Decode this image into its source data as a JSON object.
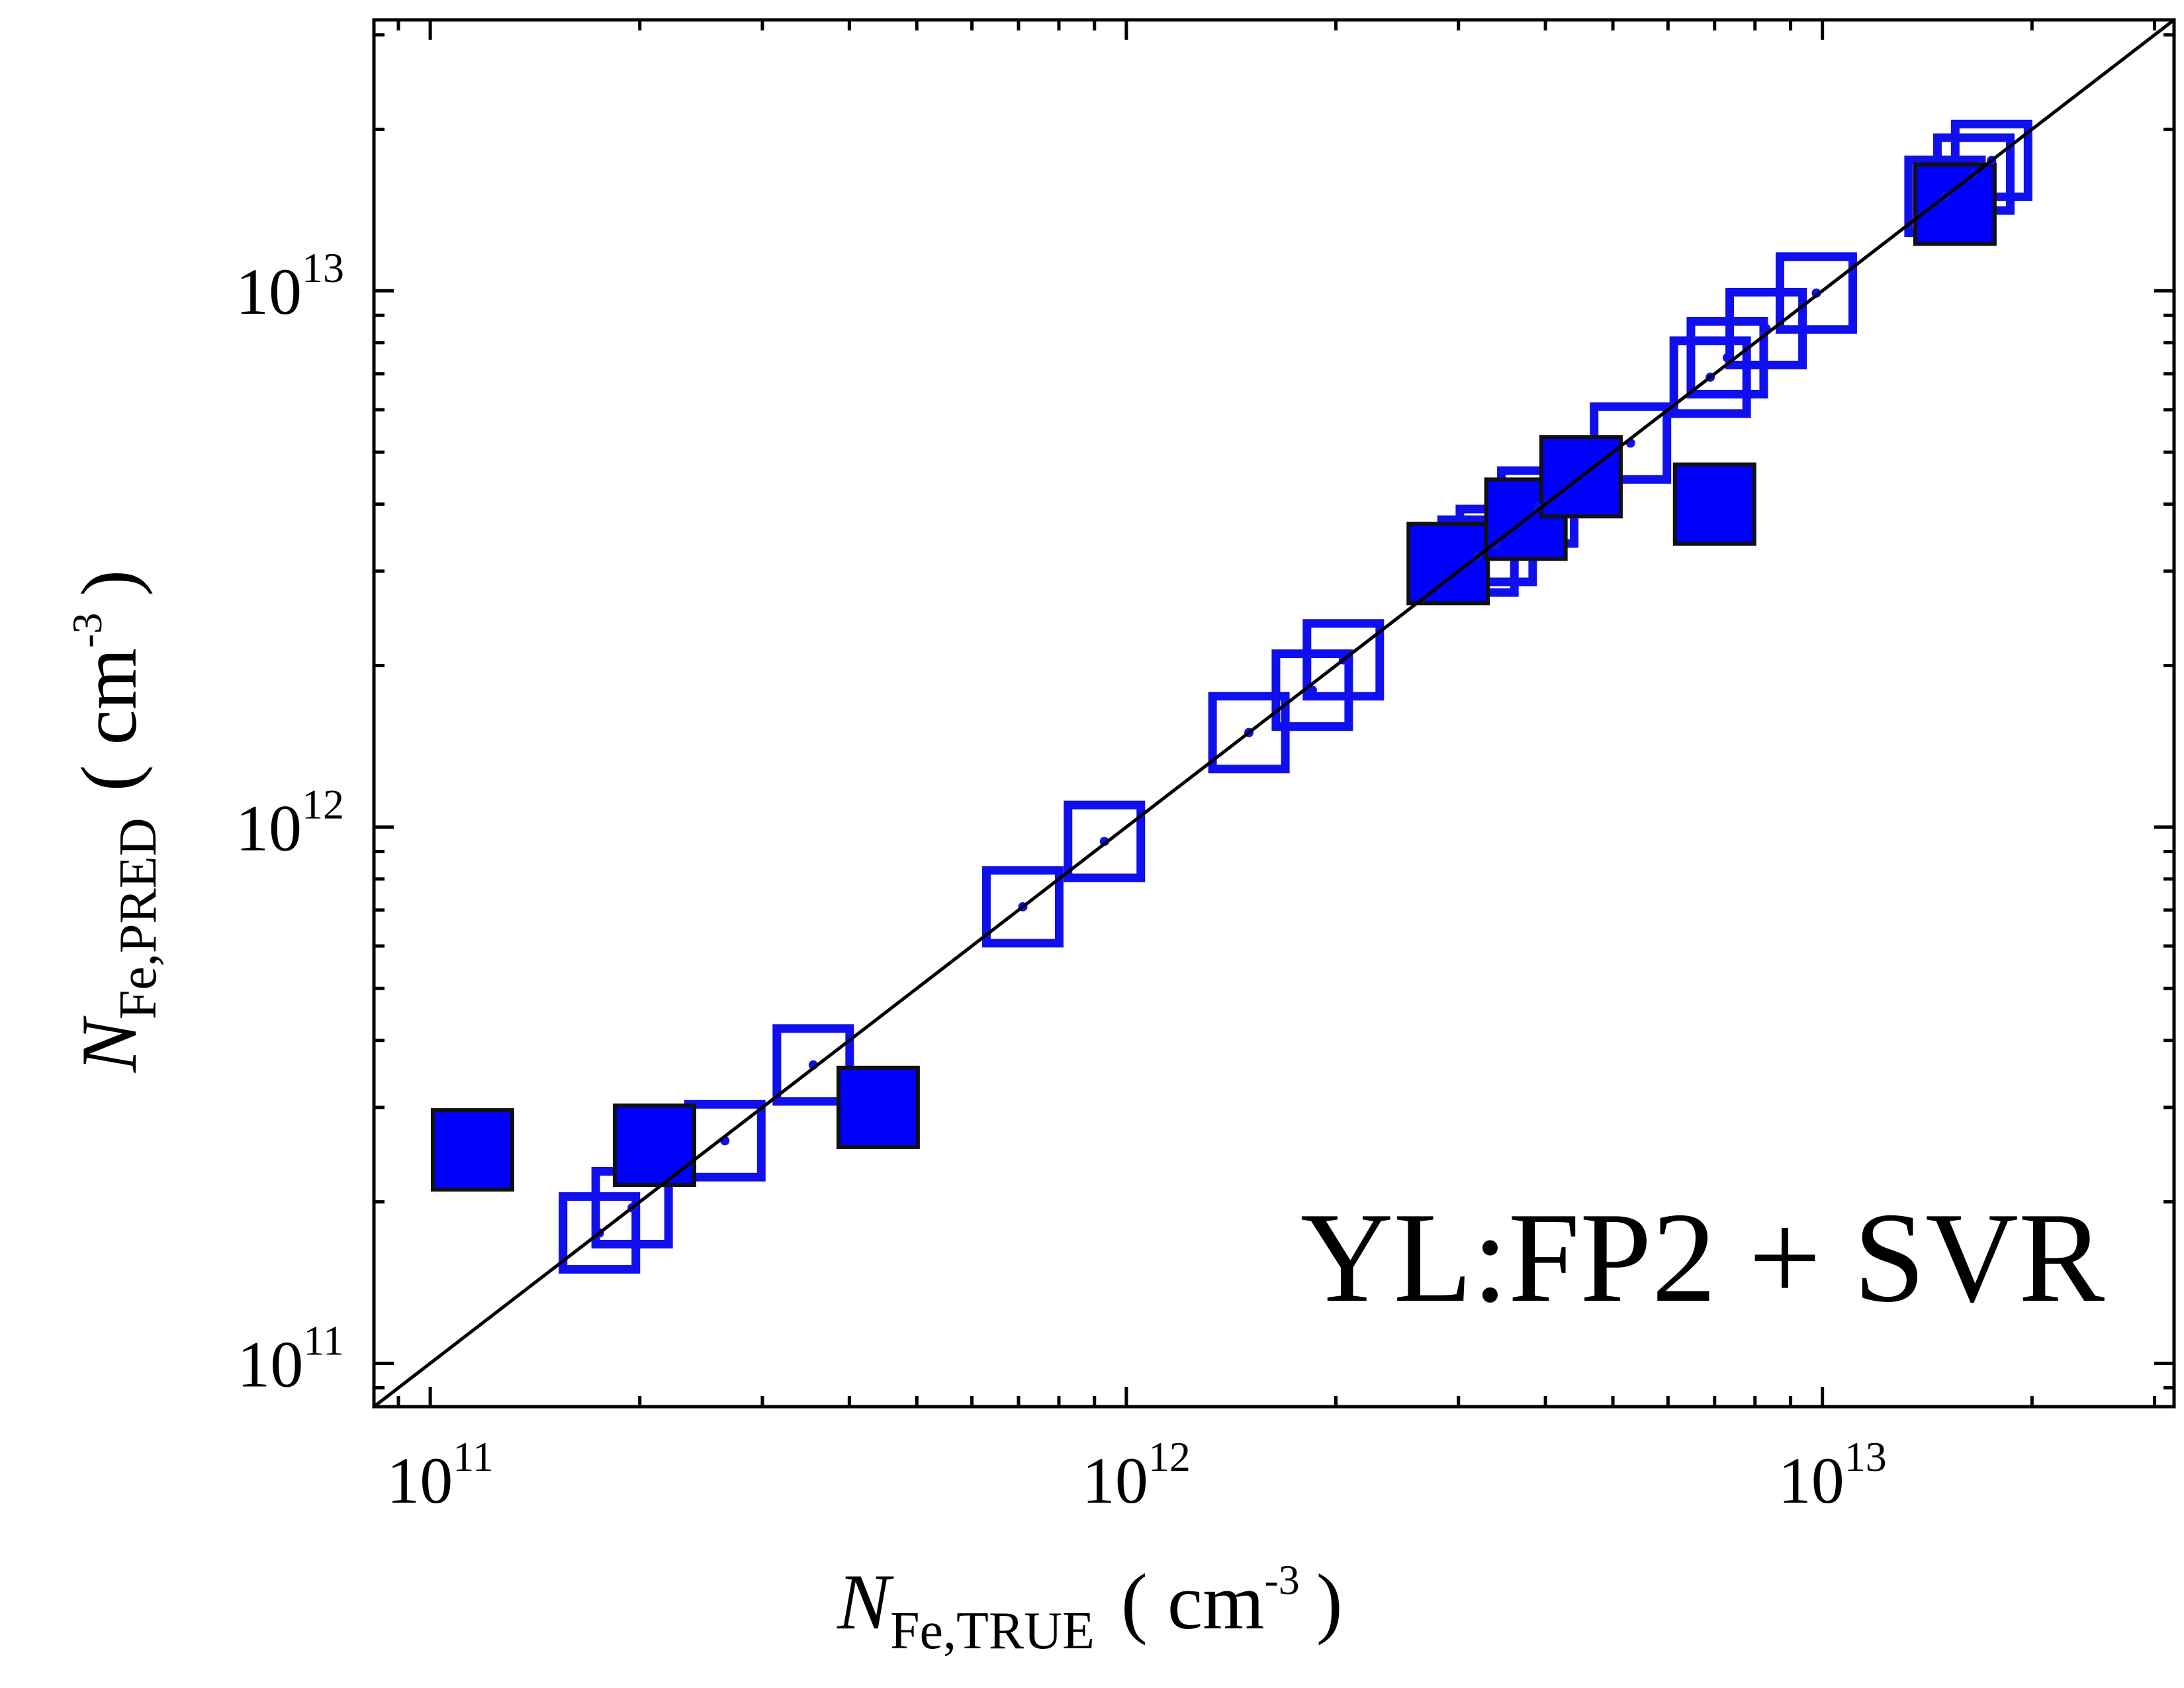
{
  "chart_data": {
    "type": "scatter",
    "title": "",
    "annotation": "YL:FP2 + SVR",
    "x_axis": {
      "scale": "log",
      "range": [
        83000000000.0,
        32000000000000.0
      ],
      "major_ticks": [
        {
          "value": 100000000000.0,
          "base": "10",
          "exp": "11"
        },
        {
          "value": 1000000000000.0,
          "base": "10",
          "exp": "12"
        },
        {
          "value": 10000000000000.0,
          "base": "10",
          "exp": "13"
        }
      ],
      "label": {
        "symbol": "N",
        "subscript": "Fe,TRUE",
        "unit": "( cm",
        "unit_exp": "-3",
        "unit_close": ")"
      }
    },
    "y_axis": {
      "scale": "log",
      "range": [
        83000000000.0,
        32000000000000.0
      ],
      "major_ticks": [
        {
          "value": 100000000000.0,
          "base": "10",
          "exp": "11"
        },
        {
          "value": 1000000000000.0,
          "base": "10",
          "exp": "12"
        },
        {
          "value": 10000000000000.0,
          "base": "10",
          "exp": "13"
        }
      ],
      "label": {
        "symbol": "N",
        "subscript": "Fe,PRED",
        "unit": "( cm",
        "unit_exp": "-3",
        "unit_close": ")"
      }
    },
    "grid": false,
    "reference_line": "y = x",
    "series": [
      {
        "marker": "open-square",
        "color": "#1010ee",
        "points": [
          {
            "x": 175000000000.0,
            "y": 175000000000.0
          },
          {
            "x": 195000000000.0,
            "y": 195000000000.0
          },
          {
            "x": 265000000000.0,
            "y": 260000000000.0
          },
          {
            "x": 355000000000.0,
            "y": 360000000000.0
          },
          {
            "x": 710000000000.0,
            "y": 710000000000.0
          },
          {
            "x": 930000000000.0,
            "y": 940000000000.0
          },
          {
            "x": 1500000000000.0,
            "y": 1500000000000.0
          },
          {
            "x": 1850000000000.0,
            "y": 1800000000000.0
          },
          {
            "x": 2050000000000.0,
            "y": 2050000000000.0
          },
          {
            "x": 3200000000000.0,
            "y": 3200000000000.0
          },
          {
            "x": 3400000000000.0,
            "y": 3350000000000.0
          },
          {
            "x": 3900000000000.0,
            "y": 3950000000000.0
          },
          {
            "x": 5300000000000.0,
            "y": 5200000000000.0
          },
          {
            "x": 6900000000000.0,
            "y": 6900000000000.0
          },
          {
            "x": 7300000000000.0,
            "y": 7500000000000.0
          },
          {
            "x": 8300000000000.0,
            "y": 8500000000000.0
          },
          {
            "x": 9800000000000.0,
            "y": 9900000000000.0
          },
          {
            "x": 15000000000000.0,
            "y": 15000000000000.0
          },
          {
            "x": 16500000000000.0,
            "y": 16500000000000.0
          },
          {
            "x": 17500000000000.0,
            "y": 17500000000000.0
          }
        ]
      },
      {
        "marker": "filled-square",
        "color": "#0000ff",
        "points": [
          {
            "x": 115000000000.0,
            "y": 250000000000.0
          },
          {
            "x": 210000000000.0,
            "y": 255000000000.0
          },
          {
            "x": 440000000000.0,
            "y": 300000000000.0
          },
          {
            "x": 2900000000000.0,
            "y": 3100000000000.0
          },
          {
            "x": 3750000000000.0,
            "y": 3750000000000.0
          },
          {
            "x": 4500000000000.0,
            "y": 4500000000000.0
          },
          {
            "x": 7000000000000.0,
            "y": 4000000000000.0
          },
          {
            "x": 15500000000000.0,
            "y": 14500000000000.0
          }
        ]
      }
    ]
  }
}
